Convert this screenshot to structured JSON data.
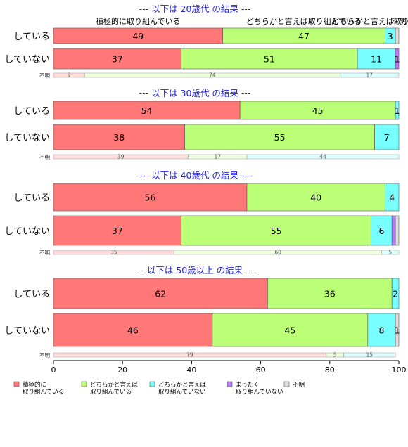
{
  "chart_data": {
    "type": "bar",
    "orientation": "horizontal",
    "stacked": true,
    "percent": true,
    "xlim": [
      0,
      100
    ],
    "xticks": [
      0,
      20,
      40,
      60,
      80,
      100
    ],
    "legend_position": "bottom",
    "categories": [
      {
        "name": "積極的に取り組んでいる",
        "legend_lines": [
          "積極的に",
          "取り組んでいる"
        ],
        "color": "#ff7777"
      },
      {
        "name": "どちらかと言えば取り組んでいる",
        "legend_lines": [
          "どちらかと言えば",
          "取り組んでいる"
        ],
        "color": "#bbff77"
      },
      {
        "name": "どちらかと言えば取り組んでいない",
        "legend_lines": [
          "どちらかと言えば",
          "取り組んでいない"
        ],
        "color": "#77ffff"
      },
      {
        "name": "まったく取り組んでいない",
        "legend_lines": [
          "まったく",
          "取り組んでいない"
        ],
        "color": "#bb77ff"
      },
      {
        "name": "不明",
        "legend_lines": [
          "不明"
        ],
        "color": "#dddddd"
      }
    ],
    "top_labels": [
      {
        "text": "積極的に取り組んでいる",
        "x": 24.5
      },
      {
        "text": "どちらかと言えば取り組んでいる",
        "x": 72.5
      },
      {
        "text": "どちらかと言えば取り組んでいない",
        "x": 98.5
      },
      {
        "text": "不明",
        "x": 100
      }
    ],
    "panels": [
      {
        "title": "--- 以下は 20歳代 の結果 ---",
        "rows": [
          {
            "label": "している",
            "values": [
              49,
              47,
              3,
              0,
              1
            ],
            "labels": [
              "49",
              "47",
              "3",
              "",
              ""
            ]
          },
          {
            "label": "していない",
            "values": [
              37,
              51,
              11,
              1,
              0
            ],
            "labels": [
              "37",
              "51",
              "11",
              "1",
              ""
            ]
          }
        ],
        "unknown": {
          "label": "不明",
          "values": [
            9,
            74,
            17
          ],
          "colors": [
            "#ffdddd",
            "#eeffdd",
            "#ddffff"
          ]
        }
      },
      {
        "title": "--- 以下は 30歳代 の結果 ---",
        "rows": [
          {
            "label": "している",
            "values": [
              54,
              45,
              1,
              0,
              0
            ],
            "labels": [
              "54",
              "45",
              "1",
              "",
              ""
            ]
          },
          {
            "label": "していない",
            "values": [
              38,
              55,
              7,
              0,
              0
            ],
            "labels": [
              "38",
              "55",
              "7",
              "",
              ""
            ]
          }
        ],
        "unknown": {
          "label": "不明",
          "values": [
            39,
            17,
            44
          ],
          "colors": [
            "#ffdddd",
            "#eeffdd",
            "#ddffff"
          ]
        }
      },
      {
        "title": "--- 以下は 40歳代 の結果 ---",
        "rows": [
          {
            "label": "している",
            "values": [
              56,
              40,
              4,
              0,
              0
            ],
            "labels": [
              "56",
              "40",
              "4",
              "",
              ""
            ]
          },
          {
            "label": "していない",
            "values": [
              37,
              55,
              6,
              1,
              1
            ],
            "labels": [
              "37",
              "55",
              "6",
              "",
              ""
            ]
          }
        ],
        "unknown": {
          "label": "不明",
          "values": [
            35,
            60,
            5
          ],
          "colors": [
            "#ffdddd",
            "#eeffdd",
            "#ddffff"
          ]
        }
      },
      {
        "title": "--- 以下は 50歳以上 の結果 ---",
        "rows": [
          {
            "label": "している",
            "values": [
              62,
              36,
              2,
              0,
              0
            ],
            "labels": [
              "62",
              "36",
              "2",
              "",
              ""
            ]
          },
          {
            "label": "していない",
            "values": [
              46,
              45,
              8,
              0,
              1
            ],
            "labels": [
              "46",
              "45",
              "8",
              "",
              "1"
            ]
          }
        ],
        "unknown": {
          "label": "不明",
          "values": [
            79,
            5,
            15
          ],
          "colors": [
            "#ffdddd",
            "#eeffdd",
            "#ddffff"
          ]
        }
      }
    ]
  }
}
